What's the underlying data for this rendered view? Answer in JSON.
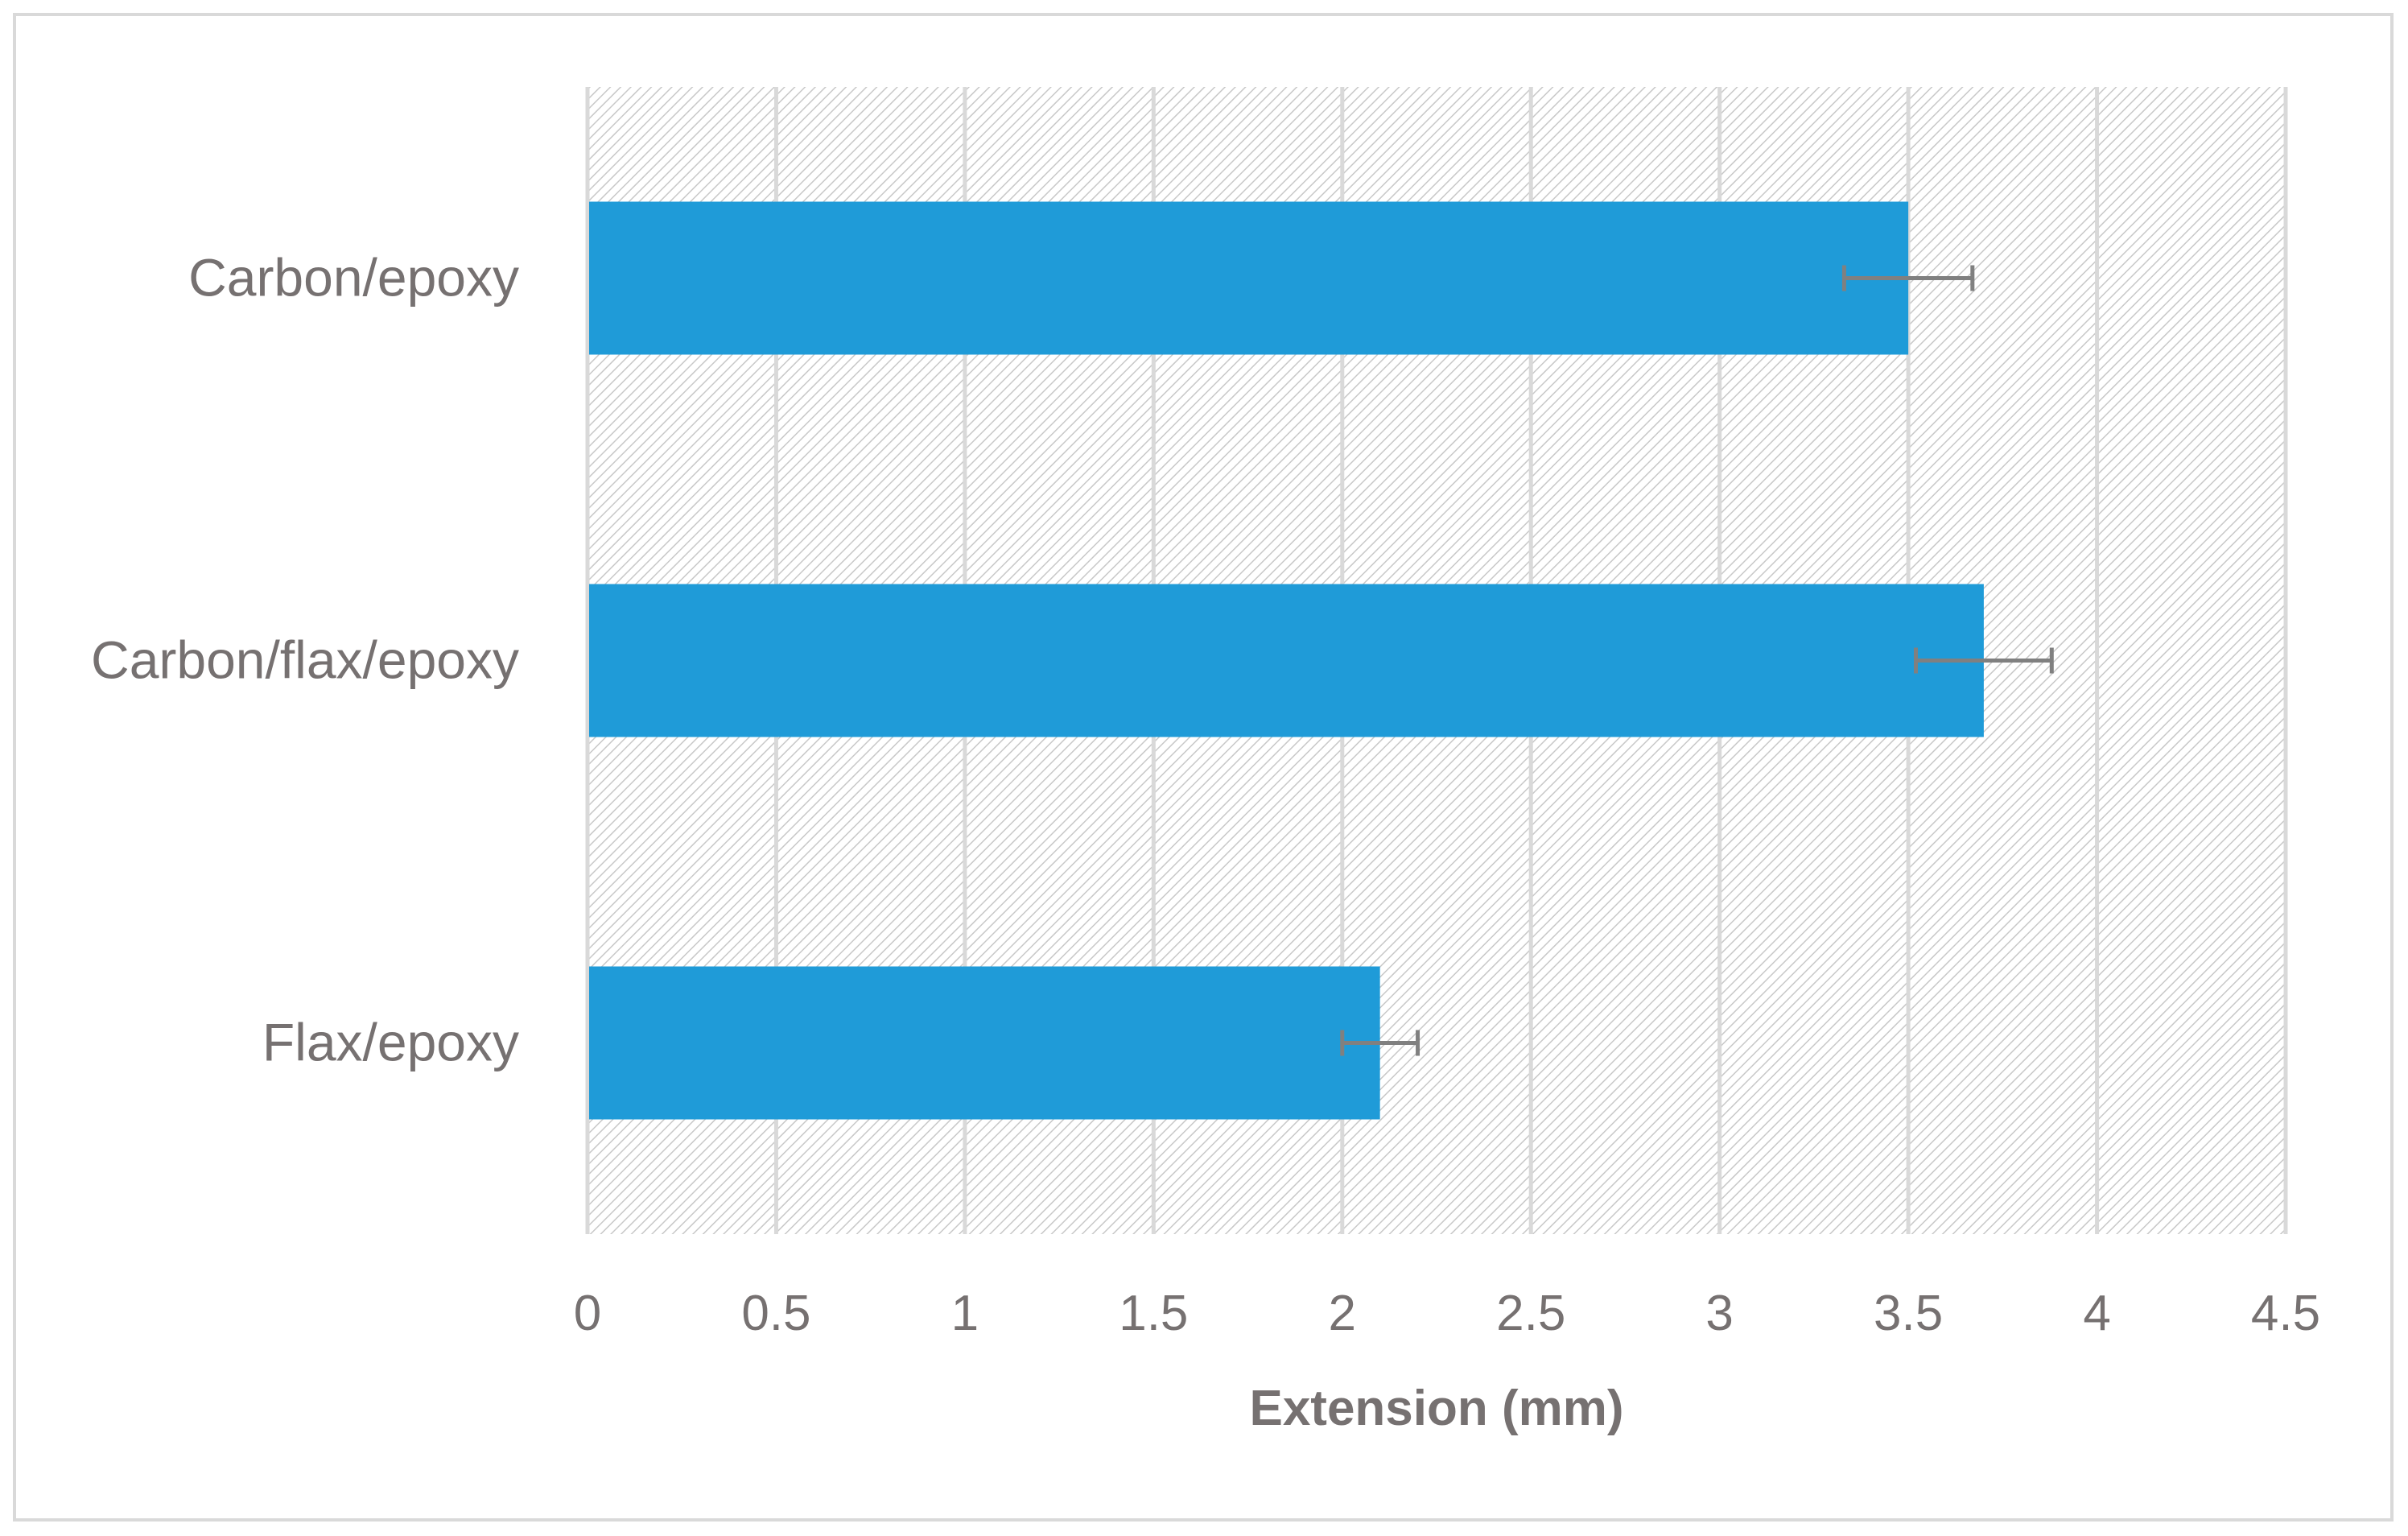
{
  "chart_data": {
    "type": "bar",
    "orientation": "horizontal",
    "categories": [
      "Carbon/epoxy",
      "Carbon/flax/epoxy",
      "Flax/epoxy"
    ],
    "values": [
      3.5,
      3.7,
      2.1
    ],
    "error_bars": [
      0.17,
      0.18,
      0.1
    ],
    "xlabel": "Extension (mm)",
    "ylabel": "",
    "title": "",
    "xlim": [
      0,
      4.5
    ],
    "xticks": [
      "0",
      "0.5",
      "1",
      "1.5",
      "2",
      "2.5",
      "3",
      "3.5",
      "4",
      "4.5"
    ],
    "grid": "vertical",
    "legend": "none",
    "colors": {
      "bar": "#1f9bd8",
      "error_bar": "#808080",
      "gridline": "#d9d9d9",
      "hatch": "#c8c8c8",
      "text": "#767171"
    }
  }
}
